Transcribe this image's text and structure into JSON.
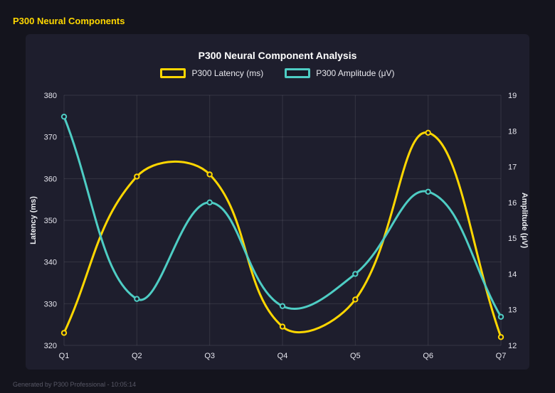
{
  "header": {
    "title": "P300 Neural Components"
  },
  "footer": {
    "text": "Generated by P300 Professional - 10:05:14"
  },
  "chart_data": {
    "type": "line",
    "title": "P300 Neural Component Analysis",
    "categories": [
      "Q1",
      "Q2",
      "Q3",
      "Q4",
      "Q5",
      "Q6",
      "Q7"
    ],
    "series": [
      {
        "name": "P300 Latency (ms)",
        "axis": "left",
        "color": "#ffd700",
        "values": [
          323,
          360.5,
          361,
          324.5,
          331,
          371,
          322
        ]
      },
      {
        "name": "P300 Amplitude (μV)",
        "axis": "right",
        "color": "#4ecdc4",
        "values": [
          18.4,
          13.3,
          16.0,
          13.1,
          14.0,
          16.3,
          12.8
        ]
      }
    ],
    "left_axis": {
      "label": "Latency (ms)",
      "min": 320,
      "max": 380,
      "ticks": [
        320,
        330,
        340,
        350,
        360,
        370,
        380
      ]
    },
    "right_axis": {
      "label": "Amplitude (μV)",
      "min": 12,
      "max": 19,
      "ticks": [
        12,
        13,
        14,
        15,
        16,
        17,
        18,
        19
      ]
    },
    "grid": true,
    "legend_position": "top",
    "line_tension": 0.4
  }
}
